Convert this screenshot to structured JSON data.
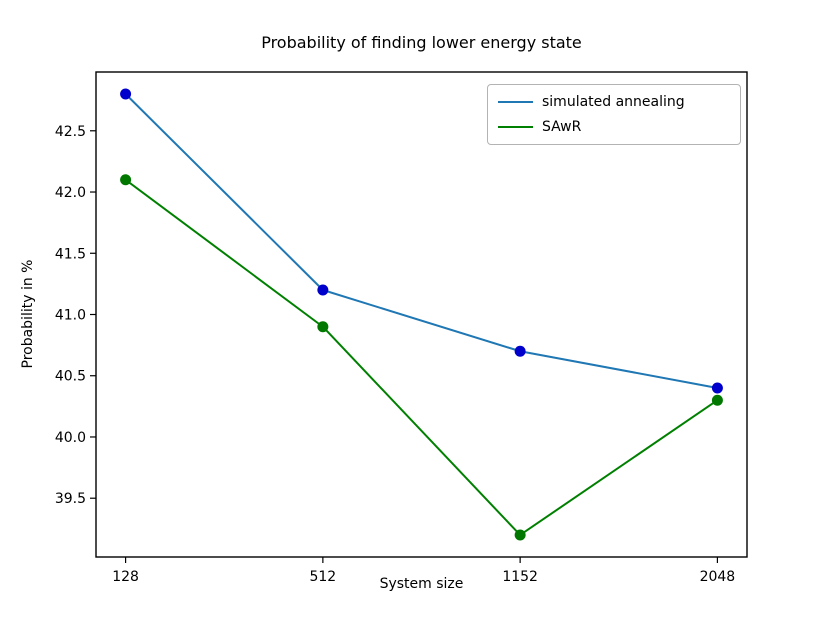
{
  "chart_data": {
    "type": "line",
    "title": "Probability of finding lower energy state",
    "xlabel": "System size",
    "ylabel": "Probability in %",
    "categories": [
      "128",
      "512",
      "1152",
      "2048"
    ],
    "series": [
      {
        "name": "simulated annealing",
        "values": [
          42.8,
          41.2,
          40.7,
          40.4
        ],
        "line_color": "#1f77b4",
        "marker_color": "#0000cd"
      },
      {
        "name": "SAwR",
        "values": [
          42.1,
          40.9,
          39.2,
          40.3
        ],
        "line_color": "#008000",
        "marker_color": "#007800"
      }
    ],
    "yticks": [
      39.5,
      40.0,
      40.5,
      41.0,
      41.5,
      42.0,
      42.5
    ],
    "ylim": [
      39.02,
      42.98
    ],
    "marker": "o",
    "grid": false,
    "legend_position": "upper right",
    "axis_color": "#000000",
    "background_color": "#ffffff"
  }
}
